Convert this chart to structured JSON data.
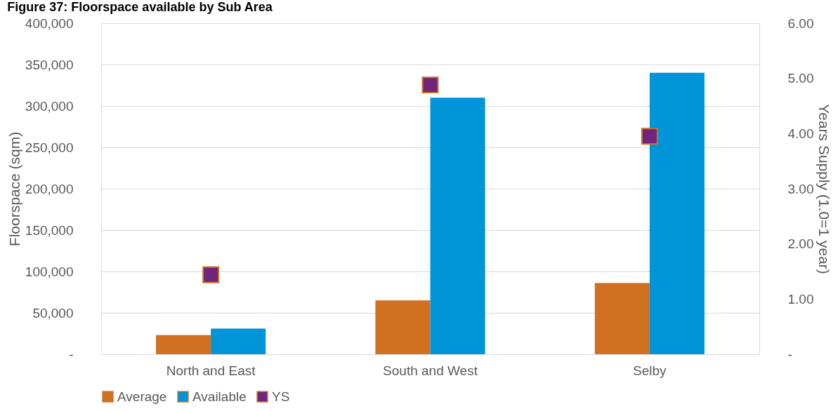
{
  "chart_data": {
    "type": "bar",
    "title": "Figure 37: Floorspace available by Sub Area",
    "ylabel": "Floorspace (sqm)",
    "y2label": "Years Supply (1.0=1 year)",
    "categories": [
      "North and East",
      "South and West",
      "Selby"
    ],
    "series": [
      {
        "name": "Average",
        "color": "#d07020",
        "values": [
          23000,
          65000,
          86000
        ]
      },
      {
        "name": "Available",
        "color": "#0094d8",
        "values": [
          31000,
          310000,
          340000
        ]
      },
      {
        "name": "YS",
        "color": "#70247c",
        "type": "scatter",
        "marker": "square",
        "axis": "y2",
        "values": [
          1.44,
          4.88,
          3.95
        ]
      }
    ],
    "ylim": [
      0,
      400000
    ],
    "yticks": [
      {
        "value": 0,
        "label": "-"
      },
      {
        "value": 50000,
        "label": "50,000"
      },
      {
        "value": 100000,
        "label": "100,000"
      },
      {
        "value": 150000,
        "label": "150,000"
      },
      {
        "value": 200000,
        "label": "200,000"
      },
      {
        "value": 250000,
        "label": "250,000"
      },
      {
        "value": 300000,
        "label": "300,000"
      },
      {
        "value": 350000,
        "label": "350,000"
      },
      {
        "value": 400000,
        "label": "400,000"
      }
    ],
    "y2lim": [
      0,
      6
    ],
    "y2ticks": [
      {
        "value": 0,
        "label": "-"
      },
      {
        "value": 1,
        "label": "1.00"
      },
      {
        "value": 2,
        "label": "2.00"
      },
      {
        "value": 3,
        "label": "3.00"
      },
      {
        "value": 4,
        "label": "4.00"
      },
      {
        "value": 5,
        "label": "5.00"
      },
      {
        "value": 6,
        "label": "6.00"
      }
    ],
    "grid": "y",
    "legend": "bottom"
  }
}
